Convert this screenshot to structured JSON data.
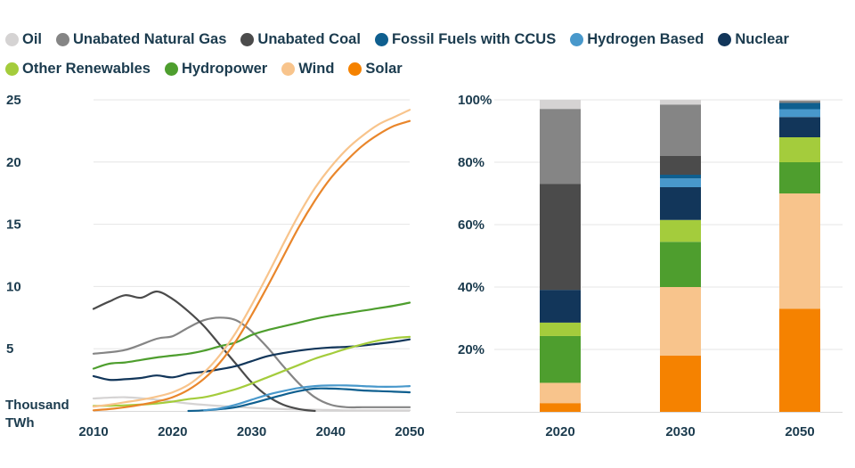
{
  "legend": [
    {
      "name": "Oil",
      "color": "#d5d3d3"
    },
    {
      "name": "Unabated Natural Gas",
      "color": "#858585"
    },
    {
      "name": "Unabated Coal",
      "color": "#4b4b4b"
    },
    {
      "name": "Fossil Fuels with CCUS",
      "color": "#0f5f8f"
    },
    {
      "name": "Hydrogen Based",
      "color": "#4898cb"
    },
    {
      "name": "Nuclear",
      "color": "#12365a"
    },
    {
      "name": "Other Renewables",
      "color": "#a4cc3c"
    },
    {
      "name": "Hydropower",
      "color": "#4e9e2e"
    },
    {
      "name": "Wind",
      "color": "#f8c48c"
    },
    {
      "name": "Solar",
      "color": "#f58200"
    }
  ],
  "chart_data": [
    {
      "type": "line",
      "xlabel": "",
      "ylabel": "Thousand TWh",
      "xlim": [
        2010,
        2050
      ],
      "ylim": [
        0,
        25
      ],
      "x_ticks": [
        "2010",
        "2020",
        "2030",
        "2040",
        "2050"
      ],
      "y_ticks": [
        "5",
        "10",
        "15",
        "20",
        "25"
      ],
      "y_unit_label": [
        "Thousand",
        "TWh"
      ],
      "series": [
        {
          "name": "Oil",
          "color": "#d5d3d3",
          "x": [
            2010,
            2014,
            2018,
            2022,
            2026,
            2030,
            2034,
            2038,
            2042,
            2046,
            2050
          ],
          "y": [
            1.0,
            1.1,
            0.9,
            0.6,
            0.4,
            0.25,
            0.15,
            0.1,
            0.05,
            0.05,
            0.05
          ]
        },
        {
          "name": "Unabated Natural Gas",
          "color": "#858585",
          "x": [
            2010,
            2014,
            2018,
            2020,
            2022,
            2024,
            2026,
            2028,
            2030,
            2032,
            2034,
            2036,
            2038,
            2040,
            2042,
            2044,
            2046,
            2048,
            2050
          ],
          "y": [
            4.6,
            4.9,
            5.8,
            6.0,
            6.7,
            7.3,
            7.5,
            7.3,
            6.4,
            5.1,
            3.6,
            2.2,
            1.1,
            0.5,
            0.3,
            0.3,
            0.3,
            0.3,
            0.3
          ]
        },
        {
          "name": "Unabated Coal",
          "color": "#4b4b4b",
          "x": [
            2010,
            2012,
            2014,
            2016,
            2018,
            2020,
            2022,
            2024,
            2026,
            2028,
            2030,
            2032,
            2034,
            2036,
            2038
          ],
          "y": [
            8.2,
            8.8,
            9.3,
            9.1,
            9.6,
            9.0,
            8.0,
            6.8,
            5.3,
            3.8,
            2.3,
            1.2,
            0.5,
            0.15,
            0.0
          ]
        },
        {
          "name": "Fossil Fuels with CCUS",
          "color": "#0f5f8f",
          "x": [
            2022,
            2024,
            2026,
            2028,
            2030,
            2032,
            2034,
            2036,
            2038,
            2040,
            2042,
            2044,
            2046,
            2048,
            2050
          ],
          "y": [
            0.0,
            0.05,
            0.15,
            0.3,
            0.6,
            0.95,
            1.3,
            1.6,
            1.8,
            1.8,
            1.75,
            1.65,
            1.6,
            1.55,
            1.5
          ]
        },
        {
          "name": "Hydrogen Based",
          "color": "#4898cb",
          "x": [
            2024,
            2026,
            2028,
            2030,
            2032,
            2034,
            2036,
            2038,
            2040,
            2042,
            2044,
            2046,
            2048,
            2050
          ],
          "y": [
            0.05,
            0.2,
            0.5,
            0.9,
            1.3,
            1.6,
            1.85,
            2.0,
            2.05,
            2.05,
            2.0,
            1.95,
            1.95,
            2.0
          ]
        },
        {
          "name": "Nuclear",
          "color": "#12365a",
          "x": [
            2010,
            2012,
            2014,
            2016,
            2018,
            2020,
            2022,
            2024,
            2026,
            2028,
            2030,
            2032,
            2034,
            2036,
            2038,
            2040,
            2042,
            2044,
            2046,
            2048,
            2050
          ],
          "y": [
            2.8,
            2.5,
            2.55,
            2.65,
            2.85,
            2.7,
            3.0,
            3.15,
            3.35,
            3.6,
            4.0,
            4.4,
            4.65,
            4.85,
            5.0,
            5.1,
            5.15,
            5.25,
            5.4,
            5.55,
            5.75
          ]
        },
        {
          "name": "Other Renewables",
          "color": "#a4cc3c",
          "x": [
            2010,
            2014,
            2018,
            2020,
            2022,
            2024,
            2026,
            2028,
            2030,
            2032,
            2034,
            2036,
            2038,
            2040,
            2042,
            2044,
            2046,
            2048,
            2050
          ],
          "y": [
            0.4,
            0.45,
            0.6,
            0.75,
            0.95,
            1.1,
            1.4,
            1.75,
            2.2,
            2.7,
            3.2,
            3.7,
            4.2,
            4.6,
            5.0,
            5.35,
            5.65,
            5.85,
            5.95
          ]
        },
        {
          "name": "Hydropower",
          "color": "#4e9e2e",
          "x": [
            2010,
            2012,
            2014,
            2016,
            2018,
            2020,
            2022,
            2024,
            2026,
            2028,
            2030,
            2032,
            2034,
            2036,
            2038,
            2040,
            2042,
            2044,
            2046,
            2048,
            2050
          ],
          "y": [
            3.4,
            3.8,
            3.9,
            4.1,
            4.3,
            4.45,
            4.6,
            4.85,
            5.2,
            5.5,
            6.1,
            6.5,
            6.8,
            7.1,
            7.4,
            7.65,
            7.85,
            8.05,
            8.25,
            8.45,
            8.7
          ]
        },
        {
          "name": "Wind",
          "color": "#f8c48c",
          "x": [
            2010,
            2012,
            2014,
            2016,
            2018,
            2020,
            2022,
            2024,
            2026,
            2028,
            2030,
            2032,
            2034,
            2036,
            2038,
            2040,
            2042,
            2044,
            2046,
            2048,
            2050
          ],
          "y": [
            0.35,
            0.5,
            0.7,
            0.9,
            1.15,
            1.5,
            2.1,
            3.1,
            4.5,
            6.3,
            8.5,
            10.9,
            13.4,
            15.8,
            17.9,
            19.6,
            21.0,
            22.1,
            23.0,
            23.6,
            24.2
          ]
        },
        {
          "name": "Solar",
          "color": "#e9862b",
          "x": [
            2010,
            2012,
            2014,
            2016,
            2018,
            2020,
            2022,
            2024,
            2026,
            2028,
            2030,
            2032,
            2034,
            2036,
            2038,
            2040,
            2042,
            2044,
            2046,
            2048,
            2050
          ],
          "y": [
            0.05,
            0.15,
            0.3,
            0.5,
            0.75,
            1.1,
            1.7,
            2.6,
            3.9,
            5.6,
            7.7,
            10.0,
            12.4,
            14.8,
            16.9,
            18.7,
            20.1,
            21.3,
            22.2,
            22.9,
            23.3
          ]
        }
      ]
    },
    {
      "type": "bar",
      "stacked": true,
      "percent": true,
      "categories": [
        "2020",
        "2030",
        "2050"
      ],
      "y_ticks": [
        "20%",
        "40%",
        "60%",
        "80%",
        "100%"
      ],
      "ylim": [
        0,
        100
      ],
      "series": [
        {
          "name": "Solar",
          "color": "#f58200",
          "values": [
            2.8,
            18.0,
            33.0
          ]
        },
        {
          "name": "Wind",
          "color": "#f8c48c",
          "values": [
            6.5,
            22.0,
            37.0
          ]
        },
        {
          "name": "Hydropower",
          "color": "#4e9e2e",
          "values": [
            15.0,
            14.5,
            10.0
          ]
        },
        {
          "name": "Other Renewables",
          "color": "#a4cc3c",
          "values": [
            4.3,
            7.0,
            8.0
          ]
        },
        {
          "name": "Nuclear",
          "color": "#12365a",
          "values": [
            10.5,
            10.5,
            6.5
          ]
        },
        {
          "name": "Hydrogen Based",
          "color": "#4898cb",
          "values": [
            0.0,
            2.8,
            2.5
          ]
        },
        {
          "name": "Fossil Fuels with CCUS",
          "color": "#0f5f8f",
          "values": [
            0.0,
            1.2,
            2.0
          ]
        },
        {
          "name": "Unabated Coal",
          "color": "#4b4b4b",
          "values": [
            34.0,
            6.0,
            0.0
          ]
        },
        {
          "name": "Unabated Natural Gas",
          "color": "#858585",
          "values": [
            24.0,
            16.5,
            0.7
          ]
        },
        {
          "name": "Oil",
          "color": "#d5d3d3",
          "values": [
            2.9,
            1.5,
            0.3
          ]
        }
      ]
    }
  ]
}
